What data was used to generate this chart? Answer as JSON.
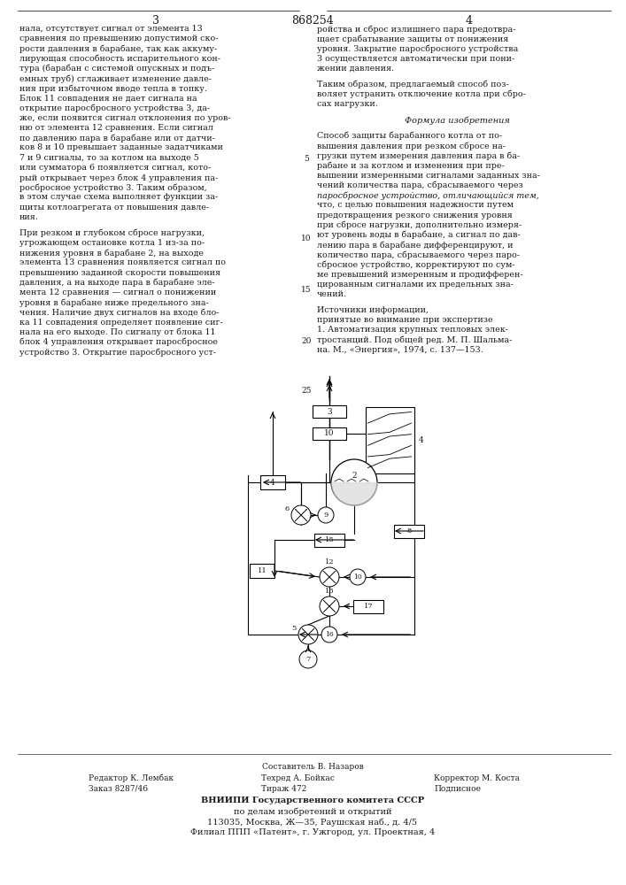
{
  "title_number": "868254",
  "page_left": "3",
  "page_right": "4",
  "col_left": "нала, отсутствует сигнал от элемента 13\nсравнения по превышению допустимой ско-\nрости давления в барабане, так как аккуму-\nлирующая способность испарительного кон-\nтура (барабан с системой опускных и подъ-\nемных труб) сглаживает изменение давле-\nния при избыточном вводе тепла в топку.\nБлок 11 совпадения не дает сигнала на\nоткрытие паросбросного устройства 3, да-\nже, если появится сигнал отклонения по уров-\nню от элемента 12 сравнения. Если сигнал\nпо давлению пара в барабане или от датчи-\nков 8 и 10 превышает заданные задатчиками\n7 и 9 сигналы, то за котлом на выходе 5\nили сумматора 6 появляется сигнал, кото-\nрый открывает через блок 4 управления па-\nросбросное устройство 3. Таким образом,\nв этом случае схема выполняет функции за-\nщиты котлоагрегата от повышения давле-\nния.\n\nПри резком и глубоком сбросе нагрузки,\nугрожающем остановке котла 1 из-за по-\nнижения уровня в барабане 2, на выходе\nэлемента 13 сравнения появляется сигнал по\nпревышению заданной скорости повышения\nдавления, а на выходе пара в барабане эле-\nмента 12 сравнения — сигнал о понижении\nуровня в барабане ниже предельного зна-\nчения. Наличие двух сигналов на входе бло-\nка 11 совпадения определяет появление сиг-\nнала на его выходе. По сигналу от блока 11\nблок 4 управления открывает паросбросное\nустройство 3. Открытие паросбросного уст-",
  "col_right": "ройства и сброс излишнего пара предотвра-\nщает срабатывание защиты от понижения\nуровня. Закрытие паросбросного устройства\n3 осуществляется автоматически при пони-\nжении давления.\n\nТаким образом, предлагаемый способ поз-\nволяет устранить отключение котла при сбро-\nсах нагрузки.\n\nФормула изобретения\n\nСпособ защиты барабанного котла от по-\nвышения давления при резком сбросе на-\nгрузки путем измерения давления пара в ба-\nрабане и за котлом и изменения при пре-\nвышении измеренными сигналами заданных зна-\nчений количества пара, сбрасываемого через\nпаросбросное устройство, отличающийся тем,\nчто, с целью повышения надежности путем\nпредотвращения резкого снижения уровня\nпри сбросе нагрузки, дополнительно измеря-\nют уровень воды в барабане, а сигнал по дав-\nлению пара в барабане дифференцируют, и\nколичество пара, сбрасываемого через паро-\nсбросное устройство, корректируют по сум-\nме превышений измеренным и продифферен-\nцированным сигналами их предельных зна-\nчений.\n\nИсточники информации,\nпринятые во внимание при экспертизе\n1. Автоматизация крупных тепловых элек-\nтростанций. Под общей ред. М. П. Шальма-\nна. М., «Энергия», 1974, с. 137—153.",
  "footer_line1": "Составитель В. Назаров",
  "footer_editor": "Редактор К. Лембак",
  "footer_techred": "Техред А. Бойкас",
  "footer_corrector": "Корректор М. Коста",
  "footer_order": "Заказ 8287/46",
  "footer_tirazh": "Тираж 472",
  "footer_podpisnoe": "Подписное",
  "footer_vniiipi": "ВНИИПИ Государственного комитета СССР",
  "footer_po_delam": "по делам изобретений и открытий",
  "footer_address": "113035, Москва, Ж—35, Раушская наб., д. 4/5",
  "footer_filial": "Филиал ППП «Патент», г. Ужгород, ул. Проектная, 4",
  "bg_color": "#ffffff",
  "text_color": "#1a1a1a",
  "line_numbers_right": [
    [
      "5",
      820
    ],
    [
      "10",
      730
    ],
    [
      "15",
      672
    ],
    [
      "20",
      615
    ],
    [
      "25",
      558
    ]
  ]
}
